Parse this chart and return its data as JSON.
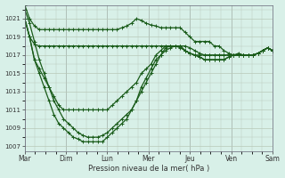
{
  "background_color": "#d8f0e8",
  "grid_color": "#b8c8b8",
  "line_color": "#1a5c1a",
  "marker_color": "#1a5c1a",
  "xlabel": "Pression niveau de la mer( hPa )",
  "ylim": [
    1006.5,
    1022.5
  ],
  "yticks": [
    1007,
    1009,
    1011,
    1013,
    1015,
    1017,
    1019,
    1021
  ],
  "day_labels": [
    "Mar",
    "Dim",
    "Lun",
    "Mer",
    "Jeu",
    "Ven",
    "Sam"
  ],
  "day_positions": [
    0,
    8,
    16,
    24,
    32,
    40,
    48
  ],
  "num_points": 52,
  "line1": [
    1022.5,
    1021.0,
    1020.2,
    1019.8,
    1019.8,
    1019.8,
    1019.8,
    1019.8,
    1019.8,
    1019.8,
    1019.8,
    1019.8,
    1019.8,
    1019.8,
    1019.8,
    1019.8,
    1019.8,
    1019.8,
    1019.8,
    1019.8,
    1020.0,
    1020.2,
    1020.5,
    1021.0,
    1020.8,
    1020.5,
    1020.3,
    1020.2,
    1020.0,
    1020.0,
    1020.0,
    1020.0,
    1020.0,
    1019.5,
    1019.0,
    1018.5,
    1018.5,
    1018.5,
    1018.5,
    1018.0,
    1018.0,
    1017.5,
    1017.2,
    1017.0,
    1017.0,
    1017.0,
    1017.0,
    1017.0,
    1017.2,
    1017.5,
    1017.8,
    1017.5
  ],
  "line2": [
    1021.0,
    1019.0,
    1018.2,
    1018.0,
    1018.0,
    1018.0,
    1018.0,
    1018.0,
    1018.0,
    1018.0,
    1018.0,
    1018.0,
    1018.0,
    1018.0,
    1018.0,
    1018.0,
    1018.0,
    1018.0,
    1018.0,
    1018.0,
    1018.0,
    1018.0,
    1018.0,
    1018.0,
    1018.0,
    1018.0,
    1018.0,
    1018.0,
    1018.0,
    1018.0,
    1018.0,
    1018.0,
    1017.8,
    1017.5,
    1017.2,
    1017.0,
    1017.0,
    1017.0,
    1017.0,
    1017.0,
    1017.0,
    1017.0,
    1017.0,
    1017.0,
    1017.0,
    1017.0,
    1017.0,
    1017.0,
    1017.2,
    1017.5,
    1017.8,
    1017.5
  ],
  "line3": [
    1021.0,
    1019.0,
    1016.5,
    1015.5,
    1014.5,
    1013.5,
    1012.5,
    1011.5,
    1011.0,
    1011.0,
    1011.0,
    1011.0,
    1011.0,
    1011.0,
    1011.0,
    1011.0,
    1011.0,
    1011.0,
    1011.5,
    1012.0,
    1012.5,
    1013.0,
    1013.5,
    1014.0,
    1015.0,
    1015.5,
    1016.0,
    1017.0,
    1017.5,
    1018.0,
    1018.0,
    1018.0,
    1018.0,
    1018.0,
    1017.8,
    1017.5,
    1017.2,
    1017.0,
    1017.0,
    1017.0,
    1017.0,
    1017.0,
    1017.0,
    1017.0,
    1017.0,
    1017.0,
    1017.0,
    1017.0,
    1017.2,
    1017.5,
    1017.8,
    1017.5
  ],
  "line4": [
    1022.0,
    1020.5,
    1018.5,
    1016.5,
    1015.0,
    1013.5,
    1012.0,
    1011.0,
    1010.0,
    1009.5,
    1009.0,
    1008.5,
    1008.2,
    1008.0,
    1008.0,
    1008.0,
    1008.2,
    1008.5,
    1009.0,
    1009.5,
    1010.0,
    1010.5,
    1011.0,
    1012.0,
    1013.0,
    1014.0,
    1015.0,
    1016.0,
    1017.0,
    1017.8,
    1018.0,
    1018.0,
    1018.0,
    1017.5,
    1017.2,
    1017.0,
    1016.8,
    1016.5,
    1016.5,
    1016.5,
    1016.5,
    1016.5,
    1016.8,
    1017.0,
    1017.2,
    1017.0,
    1017.0,
    1017.0,
    1017.2,
    1017.5,
    1017.8,
    1017.5
  ],
  "line5": [
    1021.0,
    1019.0,
    1016.5,
    1015.0,
    1013.5,
    1012.0,
    1010.5,
    1009.5,
    1009.0,
    1008.5,
    1008.0,
    1007.8,
    1007.5,
    1007.5,
    1007.5,
    1007.5,
    1007.5,
    1008.0,
    1008.5,
    1009.0,
    1009.5,
    1010.0,
    1011.0,
    1012.0,
    1013.5,
    1014.5,
    1015.5,
    1016.5,
    1017.0,
    1017.5,
    1017.8,
    1018.0,
    1018.0,
    1017.5,
    1017.2,
    1017.0,
    1016.8,
    1016.5,
    1016.5,
    1016.5,
    1016.5,
    1016.5,
    1016.8,
    1017.0,
    1017.0,
    1017.0,
    1017.0,
    1017.0,
    1017.2,
    1017.5,
    1017.8,
    1017.5
  ]
}
